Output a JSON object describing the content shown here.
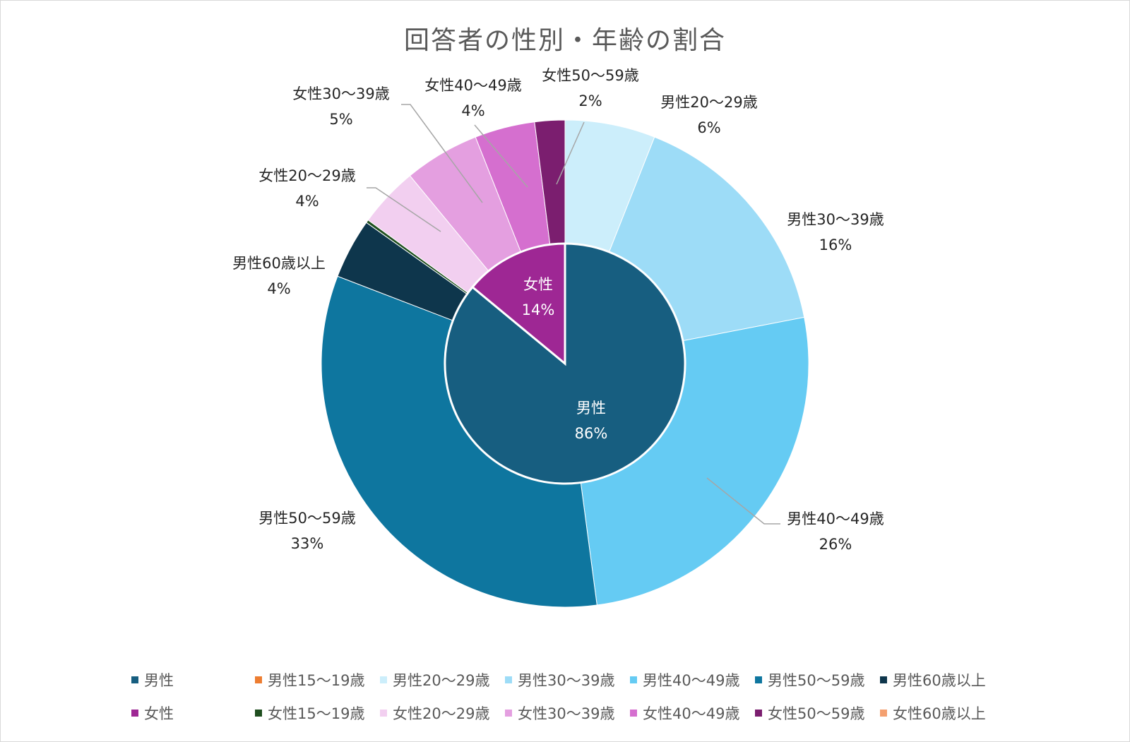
{
  "chart_data": {
    "type": "pie",
    "title": "回答者の性別・年齢の割合",
    "inner": {
      "slices": [
        {
          "name": "男性",
          "value": 86,
          "label": "86%",
          "color": "#175e80"
        },
        {
          "name": "女性",
          "value": 14,
          "label": "14%",
          "color": "#9e2794"
        }
      ]
    },
    "outer": {
      "slices": [
        {
          "name": "男性15〜19歳",
          "value": 0,
          "label": "",
          "color": "#ed7d31"
        },
        {
          "name": "男性20〜29歳",
          "value": 6,
          "label": "6%",
          "color": "#cceefb"
        },
        {
          "name": "男性30〜39歳",
          "value": 16,
          "label": "16%",
          "color": "#9ddcf7"
        },
        {
          "name": "男性40〜49歳",
          "value": 26,
          "label": "26%",
          "color": "#65cbf3"
        },
        {
          "name": "男性50〜59歳",
          "value": 33,
          "label": "33%",
          "color": "#0e769f"
        },
        {
          "name": "男性60歳以上",
          "value": 4,
          "label": "4%",
          "color": "#0e364c"
        },
        {
          "name": "女性15〜19歳",
          "value": 0.2,
          "label": "",
          "color": "#1f4e1f"
        },
        {
          "name": "女性20〜29歳",
          "value": 4,
          "label": "4%",
          "color": "#f2cff0"
        },
        {
          "name": "女性30〜39歳",
          "value": 5,
          "label": "5%",
          "color": "#e49fe0"
        },
        {
          "name": "女性40〜49歳",
          "value": 4,
          "label": "4%",
          "color": "#d56fcf"
        },
        {
          "name": "女性50〜59歳",
          "value": 2,
          "label": "2%",
          "color": "#7b1e6f"
        },
        {
          "name": "女性60歳以上",
          "value": 0,
          "label": "",
          "color": "#f4a070"
        }
      ]
    },
    "legend": [
      [
        {
          "name": "男性",
          "color": "#175e80"
        },
        {
          "name": "男性15〜19歳",
          "color": "#ed7d31"
        },
        {
          "name": "男性20〜29歳",
          "color": "#cceefb"
        },
        {
          "name": "男性30〜39歳",
          "color": "#9ddcf7"
        },
        {
          "name": "男性40〜49歳",
          "color": "#65cbf3"
        },
        {
          "name": "男性50〜59歳",
          "color": "#0e769f"
        },
        {
          "name": "男性60歳以上",
          "color": "#0e364c"
        }
      ],
      [
        {
          "name": "女性",
          "color": "#9e2794"
        },
        {
          "name": "女性15〜19歳",
          "color": "#1f4e1f"
        },
        {
          "name": "女性20〜29歳",
          "color": "#f2cff0"
        },
        {
          "name": "女性30〜39歳",
          "color": "#e49fe0"
        },
        {
          "name": "女性40〜49歳",
          "color": "#d56fcf"
        },
        {
          "name": "女性50〜59歳",
          "color": "#7b1e6f"
        },
        {
          "name": "女性60歳以上",
          "color": "#f4a070"
        }
      ]
    ],
    "legend_position": "bottom"
  }
}
